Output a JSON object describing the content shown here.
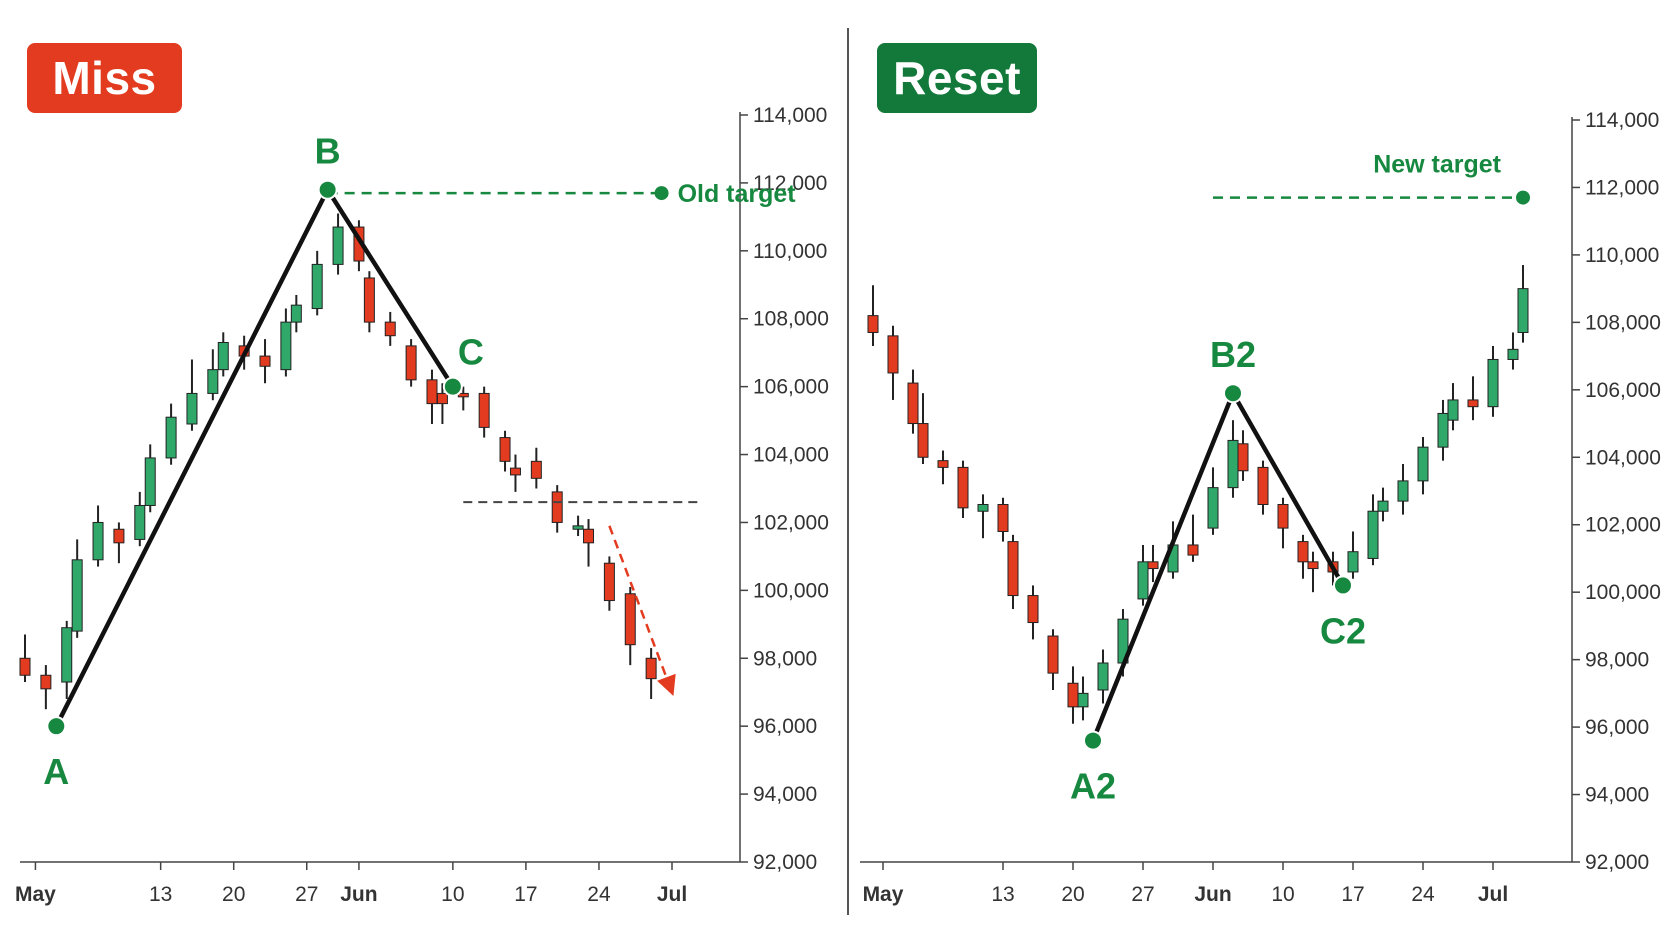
{
  "panels": [
    {
      "badge": {
        "label": "Miss",
        "color": "#e33b1f"
      },
      "target_label": "Old target",
      "points": [
        {
          "label": "A",
          "date": "2024-05-03",
          "price": 96000
        },
        {
          "label": "B",
          "date": "2024-05-29",
          "price": 111800
        },
        {
          "label": "C",
          "date": "2024-06-10",
          "price": 106000
        }
      ]
    },
    {
      "badge": {
        "label": "Reset",
        "color": "#12793a"
      },
      "target_label": "New target",
      "points": [
        {
          "label": "A2",
          "date": "2024-05-22",
          "price": 95600
        },
        {
          "label": "B2",
          "date": "2024-06-05",
          "price": 105900
        },
        {
          "label": "C2",
          "date": "2024-06-16",
          "price": 100200
        }
      ]
    }
  ],
  "colors": {
    "up": "#2fa86a",
    "down": "#e33b1f",
    "point": "#17883f",
    "label_green": "#17883f",
    "axis": "#444444"
  },
  "chart_data": [
    {
      "type": "candlestick",
      "title": "Miss",
      "xlabel": "",
      "ylabel": "",
      "ylim": [
        92000,
        114000
      ],
      "xlim": [
        "2024-04-30",
        "2024-07-01"
      ],
      "y_ticks": [
        92000,
        94000,
        96000,
        98000,
        100000,
        102000,
        104000,
        106000,
        108000,
        110000,
        112000,
        114000
      ],
      "x_ticks": [
        {
          "label": "May",
          "date": "2024-05-01",
          "bold": true
        },
        {
          "label": "13",
          "date": "2024-05-13",
          "bold": false
        },
        {
          "label": "20",
          "date": "2024-05-20",
          "bold": false
        },
        {
          "label": "27",
          "date": "2024-05-27",
          "bold": false
        },
        {
          "label": "Jun",
          "date": "2024-06-01",
          "bold": true
        },
        {
          "label": "10",
          "date": "2024-06-10",
          "bold": false
        },
        {
          "label": "17",
          "date": "2024-06-17",
          "bold": false
        },
        {
          "label": "24",
          "date": "2024-06-24",
          "bold": false
        },
        {
          "label": "Jul",
          "date": "2024-07-01",
          "bold": true
        }
      ],
      "candles": [
        {
          "date": "2024-04-30",
          "open": 98000,
          "close": 97500,
          "high": 98700,
          "low": 97300
        },
        {
          "date": "2024-05-02",
          "open": 97500,
          "close": 97100,
          "high": 97800,
          "low": 96500
        },
        {
          "date": "2024-05-04",
          "open": 97300,
          "close": 98900,
          "high": 99100,
          "low": 96800
        },
        {
          "date": "2024-05-05",
          "open": 98800,
          "close": 100900,
          "high": 101500,
          "low": 98600
        },
        {
          "date": "2024-05-07",
          "open": 100900,
          "close": 102000,
          "high": 102500,
          "low": 100700
        },
        {
          "date": "2024-05-09",
          "open": 101800,
          "close": 101400,
          "high": 102000,
          "low": 100800
        },
        {
          "date": "2024-05-11",
          "open": 101500,
          "close": 102500,
          "high": 102900,
          "low": 101300
        },
        {
          "date": "2024-05-12",
          "open": 102500,
          "close": 103900,
          "high": 104300,
          "low": 102300
        },
        {
          "date": "2024-05-14",
          "open": 103900,
          "close": 105100,
          "high": 105500,
          "low": 103700
        },
        {
          "date": "2024-05-16",
          "open": 104900,
          "close": 105800,
          "high": 106800,
          "low": 104700
        },
        {
          "date": "2024-05-18",
          "open": 105800,
          "close": 106500,
          "high": 107100,
          "low": 105600
        },
        {
          "date": "2024-05-19",
          "open": 106500,
          "close": 107300,
          "high": 107600,
          "low": 106300
        },
        {
          "date": "2024-05-21",
          "open": 107200,
          "close": 106900,
          "high": 107500,
          "low": 106500
        },
        {
          "date": "2024-05-23",
          "open": 106900,
          "close": 106600,
          "high": 107400,
          "low": 106100
        },
        {
          "date": "2024-05-25",
          "open": 106500,
          "close": 107900,
          "high": 108300,
          "low": 106300
        },
        {
          "date": "2024-05-26",
          "open": 107900,
          "close": 108400,
          "high": 108700,
          "low": 107600
        },
        {
          "date": "2024-05-28",
          "open": 108300,
          "close": 109600,
          "high": 110000,
          "low": 108100
        },
        {
          "date": "2024-05-30",
          "open": 109600,
          "close": 110700,
          "high": 111100,
          "low": 109300
        },
        {
          "date": "2024-06-01",
          "open": 110700,
          "close": 109700,
          "high": 110900,
          "low": 109400
        },
        {
          "date": "2024-06-02",
          "open": 109200,
          "close": 107900,
          "high": 109400,
          "low": 107600
        },
        {
          "date": "2024-06-04",
          "open": 107900,
          "close": 107500,
          "high": 108200,
          "low": 107200
        },
        {
          "date": "2024-06-06",
          "open": 107200,
          "close": 106200,
          "high": 107400,
          "low": 106000
        },
        {
          "date": "2024-06-08",
          "open": 106200,
          "close": 105500,
          "high": 106500,
          "low": 104900
        },
        {
          "date": "2024-06-09",
          "open": 105800,
          "close": 105500,
          "high": 106100,
          "low": 104900
        },
        {
          "date": "2024-06-11",
          "open": 105800,
          "close": 105700,
          "high": 106000,
          "low": 105300
        },
        {
          "date": "2024-06-13",
          "open": 105800,
          "close": 104800,
          "high": 106000,
          "low": 104500
        },
        {
          "date": "2024-06-15",
          "open": 104500,
          "close": 103800,
          "high": 104700,
          "low": 103500
        },
        {
          "date": "2024-06-16",
          "open": 103600,
          "close": 103400,
          "high": 104000,
          "low": 102900
        },
        {
          "date": "2024-06-18",
          "open": 103800,
          "close": 103300,
          "high": 104200,
          "low": 103000
        },
        {
          "date": "2024-06-20",
          "open": 102900,
          "close": 102000,
          "high": 103100,
          "low": 101700
        },
        {
          "date": "2024-06-22",
          "open": 101800,
          "close": 101900,
          "high": 102200,
          "low": 101600
        },
        {
          "date": "2024-06-23",
          "open": 101800,
          "close": 101400,
          "high": 102100,
          "low": 100700
        },
        {
          "date": "2024-06-25",
          "open": 100800,
          "close": 99700,
          "high": 101000,
          "low": 99400
        },
        {
          "date": "2024-06-27",
          "open": 99900,
          "close": 98400,
          "high": 100100,
          "low": 97800
        },
        {
          "date": "2024-06-29",
          "open": 98000,
          "close": 97400,
          "high": 98300,
          "low": 96800
        }
      ],
      "annotations": {
        "pattern_lines": [
          [
            "A",
            "B"
          ],
          [
            "B",
            "C"
          ]
        ],
        "target_level": 111700,
        "target_line": {
          "from": "2024-05-29",
          "to": "2024-06-30"
        },
        "support_level": 102600,
        "support_line": {
          "from": "2024-06-11",
          "to": "2024-07-04"
        },
        "projection_arrow": {
          "from": {
            "date": "2024-06-25",
            "price": 101900
          },
          "to": {
            "date": "2024-07-01",
            "price": 97000
          }
        }
      }
    },
    {
      "type": "candlestick",
      "title": "Reset",
      "xlabel": "",
      "ylabel": "",
      "ylim": [
        92000,
        114000
      ],
      "xlim": [
        "2024-04-30",
        "2024-07-06"
      ],
      "y_ticks": [
        92000,
        94000,
        96000,
        98000,
        100000,
        102000,
        104000,
        106000,
        108000,
        110000,
        112000,
        114000
      ],
      "x_ticks": [
        {
          "label": "May",
          "date": "2024-05-01",
          "bold": true
        },
        {
          "label": "13",
          "date": "2024-05-13",
          "bold": false
        },
        {
          "label": "20",
          "date": "2024-05-20",
          "bold": false
        },
        {
          "label": "27",
          "date": "2024-05-27",
          "bold": false
        },
        {
          "label": "Jun",
          "date": "2024-06-03",
          "bold": true
        },
        {
          "label": "10",
          "date": "2024-06-10",
          "bold": false
        },
        {
          "label": "17",
          "date": "2024-06-17",
          "bold": false
        },
        {
          "label": "24",
          "date": "2024-06-24",
          "bold": false
        },
        {
          "label": "Jul",
          "date": "2024-07-01",
          "bold": true
        }
      ],
      "candles": [
        {
          "date": "2024-04-30",
          "open": 108200,
          "close": 107700,
          "high": 109100,
          "low": 107300
        },
        {
          "date": "2024-05-02",
          "open": 107600,
          "close": 106500,
          "high": 107900,
          "low": 105700
        },
        {
          "date": "2024-05-04",
          "open": 106200,
          "close": 105000,
          "high": 106600,
          "low": 104700
        },
        {
          "date": "2024-05-05",
          "open": 105000,
          "close": 104000,
          "high": 105900,
          "low": 103800
        },
        {
          "date": "2024-05-07",
          "open": 103900,
          "close": 103700,
          "high": 104200,
          "low": 103200
        },
        {
          "date": "2024-05-09",
          "open": 103700,
          "close": 102500,
          "high": 103900,
          "low": 102200
        },
        {
          "date": "2024-05-11",
          "open": 102400,
          "close": 102600,
          "high": 102900,
          "low": 101600
        },
        {
          "date": "2024-05-13",
          "open": 102600,
          "close": 101800,
          "high": 102800,
          "low": 101500
        },
        {
          "date": "2024-05-14",
          "open": 101500,
          "close": 99900,
          "high": 101700,
          "low": 99500
        },
        {
          "date": "2024-05-16",
          "open": 99900,
          "close": 99100,
          "high": 100200,
          "low": 98600
        },
        {
          "date": "2024-05-18",
          "open": 98700,
          "close": 97600,
          "high": 98900,
          "low": 97100
        },
        {
          "date": "2024-05-20",
          "open": 97300,
          "close": 96600,
          "high": 97800,
          "low": 96100
        },
        {
          "date": "2024-05-21",
          "open": 96600,
          "close": 97000,
          "high": 97500,
          "low": 96200
        },
        {
          "date": "2024-05-23",
          "open": 97100,
          "close": 97900,
          "high": 98300,
          "low": 96700
        },
        {
          "date": "2024-05-25",
          "open": 97900,
          "close": 99200,
          "high": 99500,
          "low": 97500
        },
        {
          "date": "2024-05-27",
          "open": 99800,
          "close": 100900,
          "high": 101400,
          "low": 99600
        },
        {
          "date": "2024-05-28",
          "open": 100900,
          "close": 100700,
          "high": 101400,
          "low": 100300
        },
        {
          "date": "2024-05-30",
          "open": 100600,
          "close": 101400,
          "high": 102100,
          "low": 100400
        },
        {
          "date": "2024-06-01",
          "open": 101400,
          "close": 101100,
          "high": 102300,
          "low": 100900
        },
        {
          "date": "2024-06-03",
          "open": 101900,
          "close": 103100,
          "high": 103700,
          "low": 101700
        },
        {
          "date": "2024-06-05",
          "open": 103100,
          "close": 104500,
          "high": 105100,
          "low": 102800
        },
        {
          "date": "2024-06-06",
          "open": 104400,
          "close": 103600,
          "high": 104800,
          "low": 103300
        },
        {
          "date": "2024-06-08",
          "open": 103700,
          "close": 102600,
          "high": 103900,
          "low": 102300
        },
        {
          "date": "2024-06-10",
          "open": 102600,
          "close": 101900,
          "high": 102800,
          "low": 101300
        },
        {
          "date": "2024-06-12",
          "open": 101500,
          "close": 100900,
          "high": 101700,
          "low": 100400
        },
        {
          "date": "2024-06-13",
          "open": 100900,
          "close": 100700,
          "high": 101200,
          "low": 100000
        },
        {
          "date": "2024-06-15",
          "open": 100900,
          "close": 100600,
          "high": 101200,
          "low": 100200
        },
        {
          "date": "2024-06-17",
          "open": 100600,
          "close": 101200,
          "high": 101800,
          "low": 100400
        },
        {
          "date": "2024-06-19",
          "open": 101000,
          "close": 102400,
          "high": 102900,
          "low": 100800
        },
        {
          "date": "2024-06-20",
          "open": 102400,
          "close": 102700,
          "high": 103100,
          "low": 102100
        },
        {
          "date": "2024-06-22",
          "open": 102700,
          "close": 103300,
          "high": 103800,
          "low": 102300
        },
        {
          "date": "2024-06-24",
          "open": 103300,
          "close": 104300,
          "high": 104600,
          "low": 102900
        },
        {
          "date": "2024-06-26",
          "open": 104300,
          "close": 105300,
          "high": 105700,
          "low": 103900
        },
        {
          "date": "2024-06-27",
          "open": 105100,
          "close": 105700,
          "high": 106200,
          "low": 104800
        },
        {
          "date": "2024-06-29",
          "open": 105700,
          "close": 105500,
          "high": 106400,
          "low": 105100
        },
        {
          "date": "2024-07-01",
          "open": 105500,
          "close": 106900,
          "high": 107300,
          "low": 105200
        },
        {
          "date": "2024-07-03",
          "open": 106900,
          "close": 107200,
          "high": 107700,
          "low": 106600
        },
        {
          "date": "2024-07-04",
          "open": 107700,
          "close": 109000,
          "high": 109700,
          "low": 107400
        }
      ],
      "annotations": {
        "pattern_lines": [
          [
            "A2",
            "B2"
          ],
          [
            "B2",
            "C2"
          ]
        ],
        "target_level": 111700,
        "target_line": {
          "from": "2024-06-03",
          "to": "2024-07-04"
        }
      }
    }
  ]
}
